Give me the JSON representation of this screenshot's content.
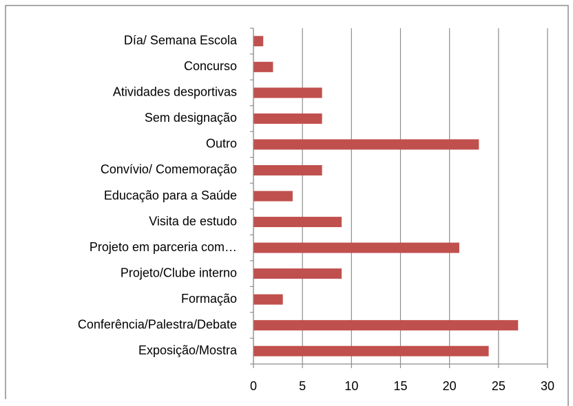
{
  "chart_data": {
    "type": "barh",
    "categories": [
      "Día/ Semana Escola",
      "Concurso",
      "Atividades desportivas",
      "Sem designação",
      "Outro",
      "Convívio/ Comemoração",
      "Educação para a Saúde",
      "Visita de estudo",
      "Projeto em parceria com…",
      "Projeto/Clube interno",
      "Formação",
      "Conferência/Palestra/Debate",
      "Exposição/Mostra"
    ],
    "values": [
      1,
      2,
      7,
      7,
      23,
      7,
      4,
      9,
      21,
      9,
      3,
      27,
      24
    ],
    "color": "#c0504d",
    "xlim": [
      0,
      30
    ],
    "xticks": [
      0,
      5,
      10,
      15,
      20,
      25,
      30
    ],
    "grid": true
  }
}
